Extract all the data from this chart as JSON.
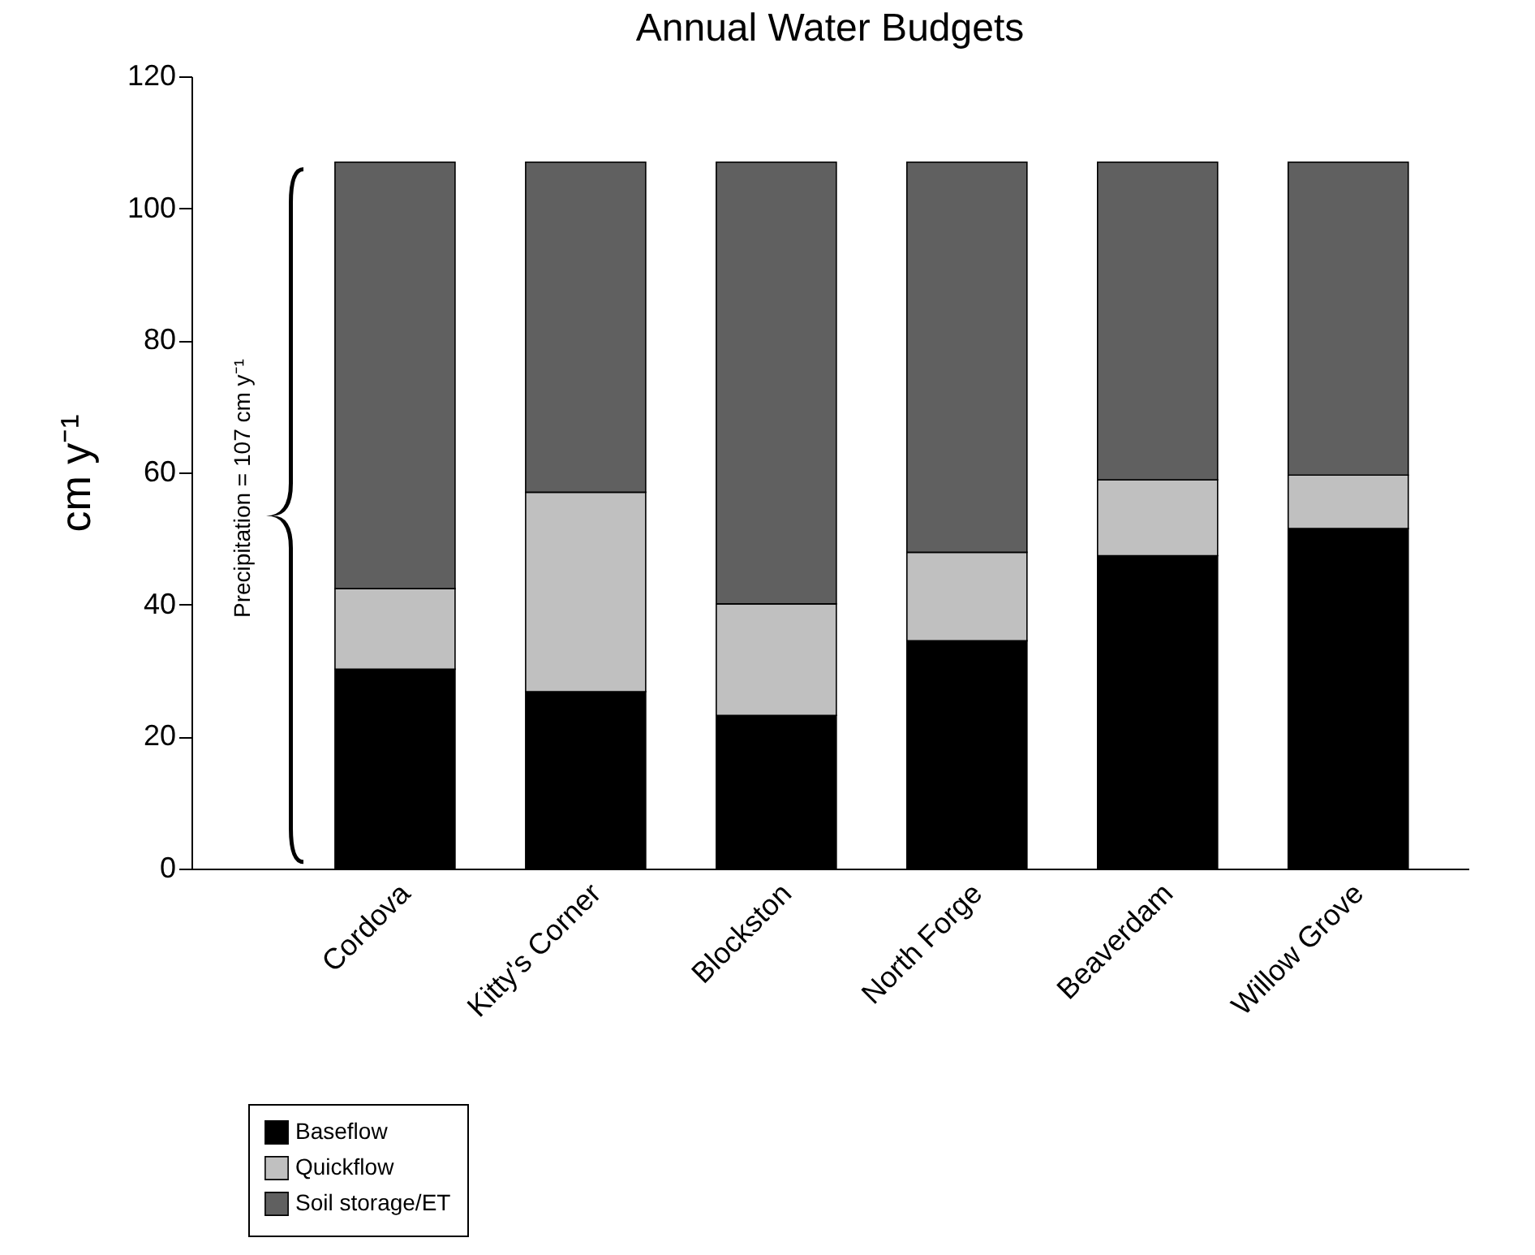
{
  "chart_data": {
    "type": "bar",
    "title": "Annual Water Budgets",
    "ylabel": "cm y⁻¹",
    "categories": [
      "Cordova",
      "Kitty's Corner",
      "Blockston",
      "North Forge",
      "Beaverdam",
      "Willow Grove"
    ],
    "series": [
      {
        "name": "Baseflow",
        "color": "#000000",
        "values": [
          30.2,
          26.8,
          23.2,
          34.5,
          47.4,
          51.5
        ]
      },
      {
        "name": "Quickflow",
        "color": "#c0c0c0",
        "values": [
          12.2,
          30.2,
          16.9,
          13.4,
          11.5,
          8.1
        ]
      },
      {
        "name": "Soil storage/ET",
        "color": "#606060",
        "values": [
          64.6,
          50.0,
          66.9,
          59.1,
          48.1,
          47.4
        ]
      }
    ],
    "stacked": true,
    "ylim": [
      0,
      120
    ],
    "yticks": [
      0,
      20,
      40,
      60,
      80,
      100,
      120
    ],
    "annotations": [
      "Precipitation = 107 cm y⁻¹"
    ],
    "legend": "bottom left",
    "grid": false
  }
}
